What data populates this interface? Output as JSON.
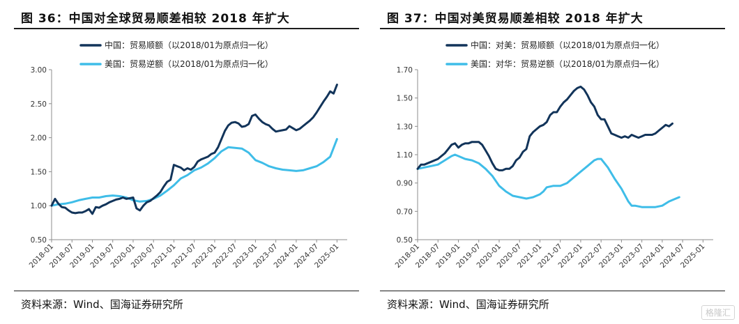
{
  "colors": {
    "dark": "#12345a",
    "light": "#3fbde8",
    "axis": "#8c8c8c"
  },
  "watermark": "格隆汇",
  "chart_data": [
    {
      "type": "line",
      "figure_title": "图 36：中国对全球贸易顺差相较 2018 年扩大",
      "source": "资料来源：Wind、国海证券研究所",
      "ylim": [
        0.5,
        3.0
      ],
      "yticks": [
        "3.00",
        "2.50",
        "2.00",
        "1.50",
        "1.00",
        "0.50"
      ],
      "ytick_values": [
        3.0,
        2.5,
        2.0,
        1.5,
        1.0,
        0.5
      ],
      "x_range": [
        0,
        87
      ],
      "xtick_labels": [
        "2018-01",
        "2018-07",
        "2019-01",
        "2019-07",
        "2020-01",
        "2020-07",
        "2021-01",
        "2021-07",
        "2022-01",
        "2022-07",
        "2023-01",
        "2023-07",
        "2024-01",
        "2024-07",
        "2025-01"
      ],
      "xtick_index": [
        0,
        6,
        12,
        18,
        24,
        30,
        36,
        42,
        48,
        54,
        60,
        66,
        72,
        78,
        84
      ],
      "legend": "top-left",
      "series": [
        {
          "name": "中国：贸易顺额（以2018/01为原点归一化）",
          "color": "dark",
          "points": [
            [
              0,
              1.0
            ],
            [
              1,
              1.1
            ],
            [
              2,
              1.03
            ],
            [
              3,
              0.98
            ],
            [
              4,
              0.97
            ],
            [
              5,
              0.93
            ],
            [
              6,
              0.9
            ],
            [
              7,
              0.89
            ],
            [
              8,
              0.9
            ],
            [
              9,
              0.9
            ],
            [
              10,
              0.92
            ],
            [
              11,
              0.95
            ],
            [
              12,
              0.88
            ],
            [
              13,
              0.98
            ],
            [
              14,
              0.97
            ],
            [
              15,
              1.0
            ],
            [
              16,
              1.02
            ],
            [
              17,
              1.05
            ],
            [
              18,
              1.07
            ],
            [
              19,
              1.09
            ],
            [
              20,
              1.1
            ],
            [
              21,
              1.12
            ],
            [
              22,
              1.1
            ],
            [
              23,
              1.11
            ],
            [
              24,
              1.12
            ],
            [
              25,
              0.96
            ],
            [
              26,
              0.93
            ],
            [
              27,
              1.0
            ],
            [
              28,
              1.05
            ],
            [
              29,
              1.07
            ],
            [
              30,
              1.11
            ],
            [
              31,
              1.15
            ],
            [
              32,
              1.2
            ],
            [
              33,
              1.28
            ],
            [
              34,
              1.35
            ],
            [
              35,
              1.38
            ],
            [
              36,
              1.6
            ],
            [
              37,
              1.58
            ],
            [
              38,
              1.56
            ],
            [
              39,
              1.52
            ],
            [
              40,
              1.55
            ],
            [
              41,
              1.53
            ],
            [
              42,
              1.57
            ],
            [
              43,
              1.65
            ],
            [
              44,
              1.68
            ],
            [
              45,
              1.7
            ],
            [
              46,
              1.72
            ],
            [
              47,
              1.76
            ],
            [
              48,
              1.78
            ],
            [
              49,
              1.86
            ],
            [
              50,
              1.98
            ],
            [
              51,
              2.1
            ],
            [
              52,
              2.18
            ],
            [
              53,
              2.22
            ],
            [
              54,
              2.23
            ],
            [
              55,
              2.21
            ],
            [
              56,
              2.16
            ],
            [
              57,
              2.17
            ],
            [
              58,
              2.2
            ],
            [
              59,
              2.32
            ],
            [
              60,
              2.34
            ],
            [
              61,
              2.28
            ],
            [
              62,
              2.23
            ],
            [
              63,
              2.2
            ],
            [
              64,
              2.18
            ],
            [
              65,
              2.13
            ],
            [
              66,
              2.09
            ],
            [
              67,
              2.1
            ],
            [
              68,
              2.11
            ],
            [
              69,
              2.12
            ],
            [
              70,
              2.17
            ],
            [
              71,
              2.14
            ],
            [
              72,
              2.11
            ],
            [
              73,
              2.13
            ],
            [
              74,
              2.17
            ],
            [
              75,
              2.21
            ],
            [
              76,
              2.25
            ],
            [
              77,
              2.3
            ],
            [
              78,
              2.37
            ],
            [
              79,
              2.45
            ],
            [
              80,
              2.53
            ],
            [
              81,
              2.6
            ],
            [
              82,
              2.68
            ],
            [
              83,
              2.65
            ],
            [
              84,
              2.78
            ]
          ]
        },
        {
          "name": "美国：贸易逆额（以2018/01为原点归一化）",
          "color": "light",
          "points": [
            [
              0,
              1.0
            ],
            [
              2,
              1.02
            ],
            [
              4,
              1.03
            ],
            [
              6,
              1.05
            ],
            [
              8,
              1.08
            ],
            [
              10,
              1.1
            ],
            [
              12,
              1.12
            ],
            [
              14,
              1.12
            ],
            [
              16,
              1.14
            ],
            [
              18,
              1.15
            ],
            [
              20,
              1.14
            ],
            [
              22,
              1.12
            ],
            [
              24,
              1.08
            ],
            [
              26,
              1.06
            ],
            [
              28,
              1.07
            ],
            [
              30,
              1.1
            ],
            [
              32,
              1.15
            ],
            [
              34,
              1.22
            ],
            [
              36,
              1.3
            ],
            [
              38,
              1.4
            ],
            [
              40,
              1.45
            ],
            [
              42,
              1.52
            ],
            [
              44,
              1.56
            ],
            [
              46,
              1.62
            ],
            [
              48,
              1.7
            ],
            [
              50,
              1.8
            ],
            [
              52,
              1.86
            ],
            [
              54,
              1.85
            ],
            [
              56,
              1.84
            ],
            [
              58,
              1.78
            ],
            [
              60,
              1.67
            ],
            [
              62,
              1.63
            ],
            [
              64,
              1.58
            ],
            [
              66,
              1.55
            ],
            [
              68,
              1.53
            ],
            [
              70,
              1.52
            ],
            [
              72,
              1.51
            ],
            [
              74,
              1.52
            ],
            [
              76,
              1.55
            ],
            [
              78,
              1.58
            ],
            [
              80,
              1.64
            ],
            [
              82,
              1.72
            ],
            [
              84,
              1.98
            ]
          ]
        }
      ]
    },
    {
      "type": "line",
      "figure_title": "图 37：中国对美贸易顺差相较 2018 年扩大",
      "source": "资料来源：Wind、国海证券研究所",
      "ylim": [
        0.5,
        1.7
      ],
      "yticks": [
        "1.70",
        "1.50",
        "1.30",
        "1.10",
        "0.90",
        "0.70",
        "0.50"
      ],
      "ytick_values": [
        1.7,
        1.5,
        1.3,
        1.1,
        0.9,
        0.7,
        0.5
      ],
      "x_range": [
        0,
        87
      ],
      "xtick_labels": [
        "2018-01",
        "2018-07",
        "2019-01",
        "2019-07",
        "2020-01",
        "2020-07",
        "2021-01",
        "2021-07",
        "2022-01",
        "2022-07",
        "2023-01",
        "2023-07",
        "2024-01",
        "2024-07",
        "2025-01"
      ],
      "xtick_index": [
        0,
        6,
        12,
        18,
        24,
        30,
        36,
        42,
        48,
        54,
        60,
        66,
        72,
        78,
        84
      ],
      "legend": "top-left",
      "series": [
        {
          "name": "中国：对美：贸易顺额（以2018/01为原点归一化）",
          "color": "dark",
          "points": [
            [
              0,
              1.0
            ],
            [
              1,
              1.03
            ],
            [
              2,
              1.03
            ],
            [
              3,
              1.04
            ],
            [
              4,
              1.05
            ],
            [
              5,
              1.06
            ],
            [
              6,
              1.07
            ],
            [
              7,
              1.09
            ],
            [
              8,
              1.11
            ],
            [
              9,
              1.14
            ],
            [
              10,
              1.17
            ],
            [
              11,
              1.18
            ],
            [
              12,
              1.15
            ],
            [
              13,
              1.17
            ],
            [
              14,
              1.18
            ],
            [
              15,
              1.18
            ],
            [
              16,
              1.19
            ],
            [
              17,
              1.19
            ],
            [
              18,
              1.19
            ],
            [
              19,
              1.17
            ],
            [
              20,
              1.13
            ],
            [
              21,
              1.09
            ],
            [
              22,
              1.04
            ],
            [
              23,
              1.0
            ],
            [
              24,
              0.99
            ],
            [
              25,
              0.99
            ],
            [
              26,
              1.0
            ],
            [
              27,
              1.0
            ],
            [
              28,
              1.02
            ],
            [
              29,
              1.06
            ],
            [
              30,
              1.08
            ],
            [
              31,
              1.12
            ],
            [
              32,
              1.14
            ],
            [
              33,
              1.23
            ],
            [
              34,
              1.26
            ],
            [
              35,
              1.28
            ],
            [
              36,
              1.3
            ],
            [
              37,
              1.31
            ],
            [
              38,
              1.33
            ],
            [
              39,
              1.38
            ],
            [
              40,
              1.4
            ],
            [
              41,
              1.4
            ],
            [
              42,
              1.44
            ],
            [
              43,
              1.47
            ],
            [
              44,
              1.49
            ],
            [
              45,
              1.52
            ],
            [
              46,
              1.55
            ],
            [
              47,
              1.57
            ],
            [
              48,
              1.58
            ],
            [
              49,
              1.56
            ],
            [
              50,
              1.52
            ],
            [
              51,
              1.47
            ],
            [
              52,
              1.44
            ],
            [
              53,
              1.38
            ],
            [
              54,
              1.35
            ],
            [
              55,
              1.35
            ],
            [
              56,
              1.3
            ],
            [
              57,
              1.25
            ],
            [
              58,
              1.24
            ],
            [
              59,
              1.23
            ],
            [
              60,
              1.22
            ],
            [
              61,
              1.23
            ],
            [
              62,
              1.22
            ],
            [
              63,
              1.24
            ],
            [
              64,
              1.23
            ],
            [
              65,
              1.22
            ],
            [
              66,
              1.23
            ],
            [
              67,
              1.24
            ],
            [
              68,
              1.24
            ],
            [
              69,
              1.24
            ],
            [
              70,
              1.25
            ],
            [
              71,
              1.27
            ],
            [
              72,
              1.29
            ],
            [
              73,
              1.31
            ],
            [
              74,
              1.3
            ],
            [
              75,
              1.32
            ]
          ]
        },
        {
          "name": "美国：对华：贸易逆额（以2018/01为原点归一化）",
          "color": "light",
          "points": [
            [
              0,
              1.0
            ],
            [
              2,
              1.01
            ],
            [
              4,
              1.02
            ],
            [
              6,
              1.03
            ],
            [
              8,
              1.06
            ],
            [
              10,
              1.09
            ],
            [
              11,
              1.1
            ],
            [
              12,
              1.09
            ],
            [
              14,
              1.07
            ],
            [
              16,
              1.06
            ],
            [
              18,
              1.04
            ],
            [
              20,
              1.0
            ],
            [
              22,
              0.95
            ],
            [
              24,
              0.88
            ],
            [
              26,
              0.84
            ],
            [
              28,
              0.81
            ],
            [
              30,
              0.8
            ],
            [
              32,
              0.79
            ],
            [
              34,
              0.8
            ],
            [
              36,
              0.82
            ],
            [
              37,
              0.84
            ],
            [
              38,
              0.87
            ],
            [
              40,
              0.88
            ],
            [
              42,
              0.88
            ],
            [
              44,
              0.9
            ],
            [
              46,
              0.94
            ],
            [
              48,
              0.98
            ],
            [
              50,
              1.02
            ],
            [
              52,
              1.06
            ],
            [
              53,
              1.07
            ],
            [
              54,
              1.07
            ],
            [
              56,
              1.01
            ],
            [
              58,
              0.93
            ],
            [
              60,
              0.86
            ],
            [
              62,
              0.77
            ],
            [
              63,
              0.74
            ],
            [
              64,
              0.74
            ],
            [
              66,
              0.73
            ],
            [
              68,
              0.73
            ],
            [
              70,
              0.73
            ],
            [
              72,
              0.74
            ],
            [
              74,
              0.77
            ],
            [
              76,
              0.79
            ],
            [
              77,
              0.8
            ]
          ]
        }
      ]
    }
  ]
}
